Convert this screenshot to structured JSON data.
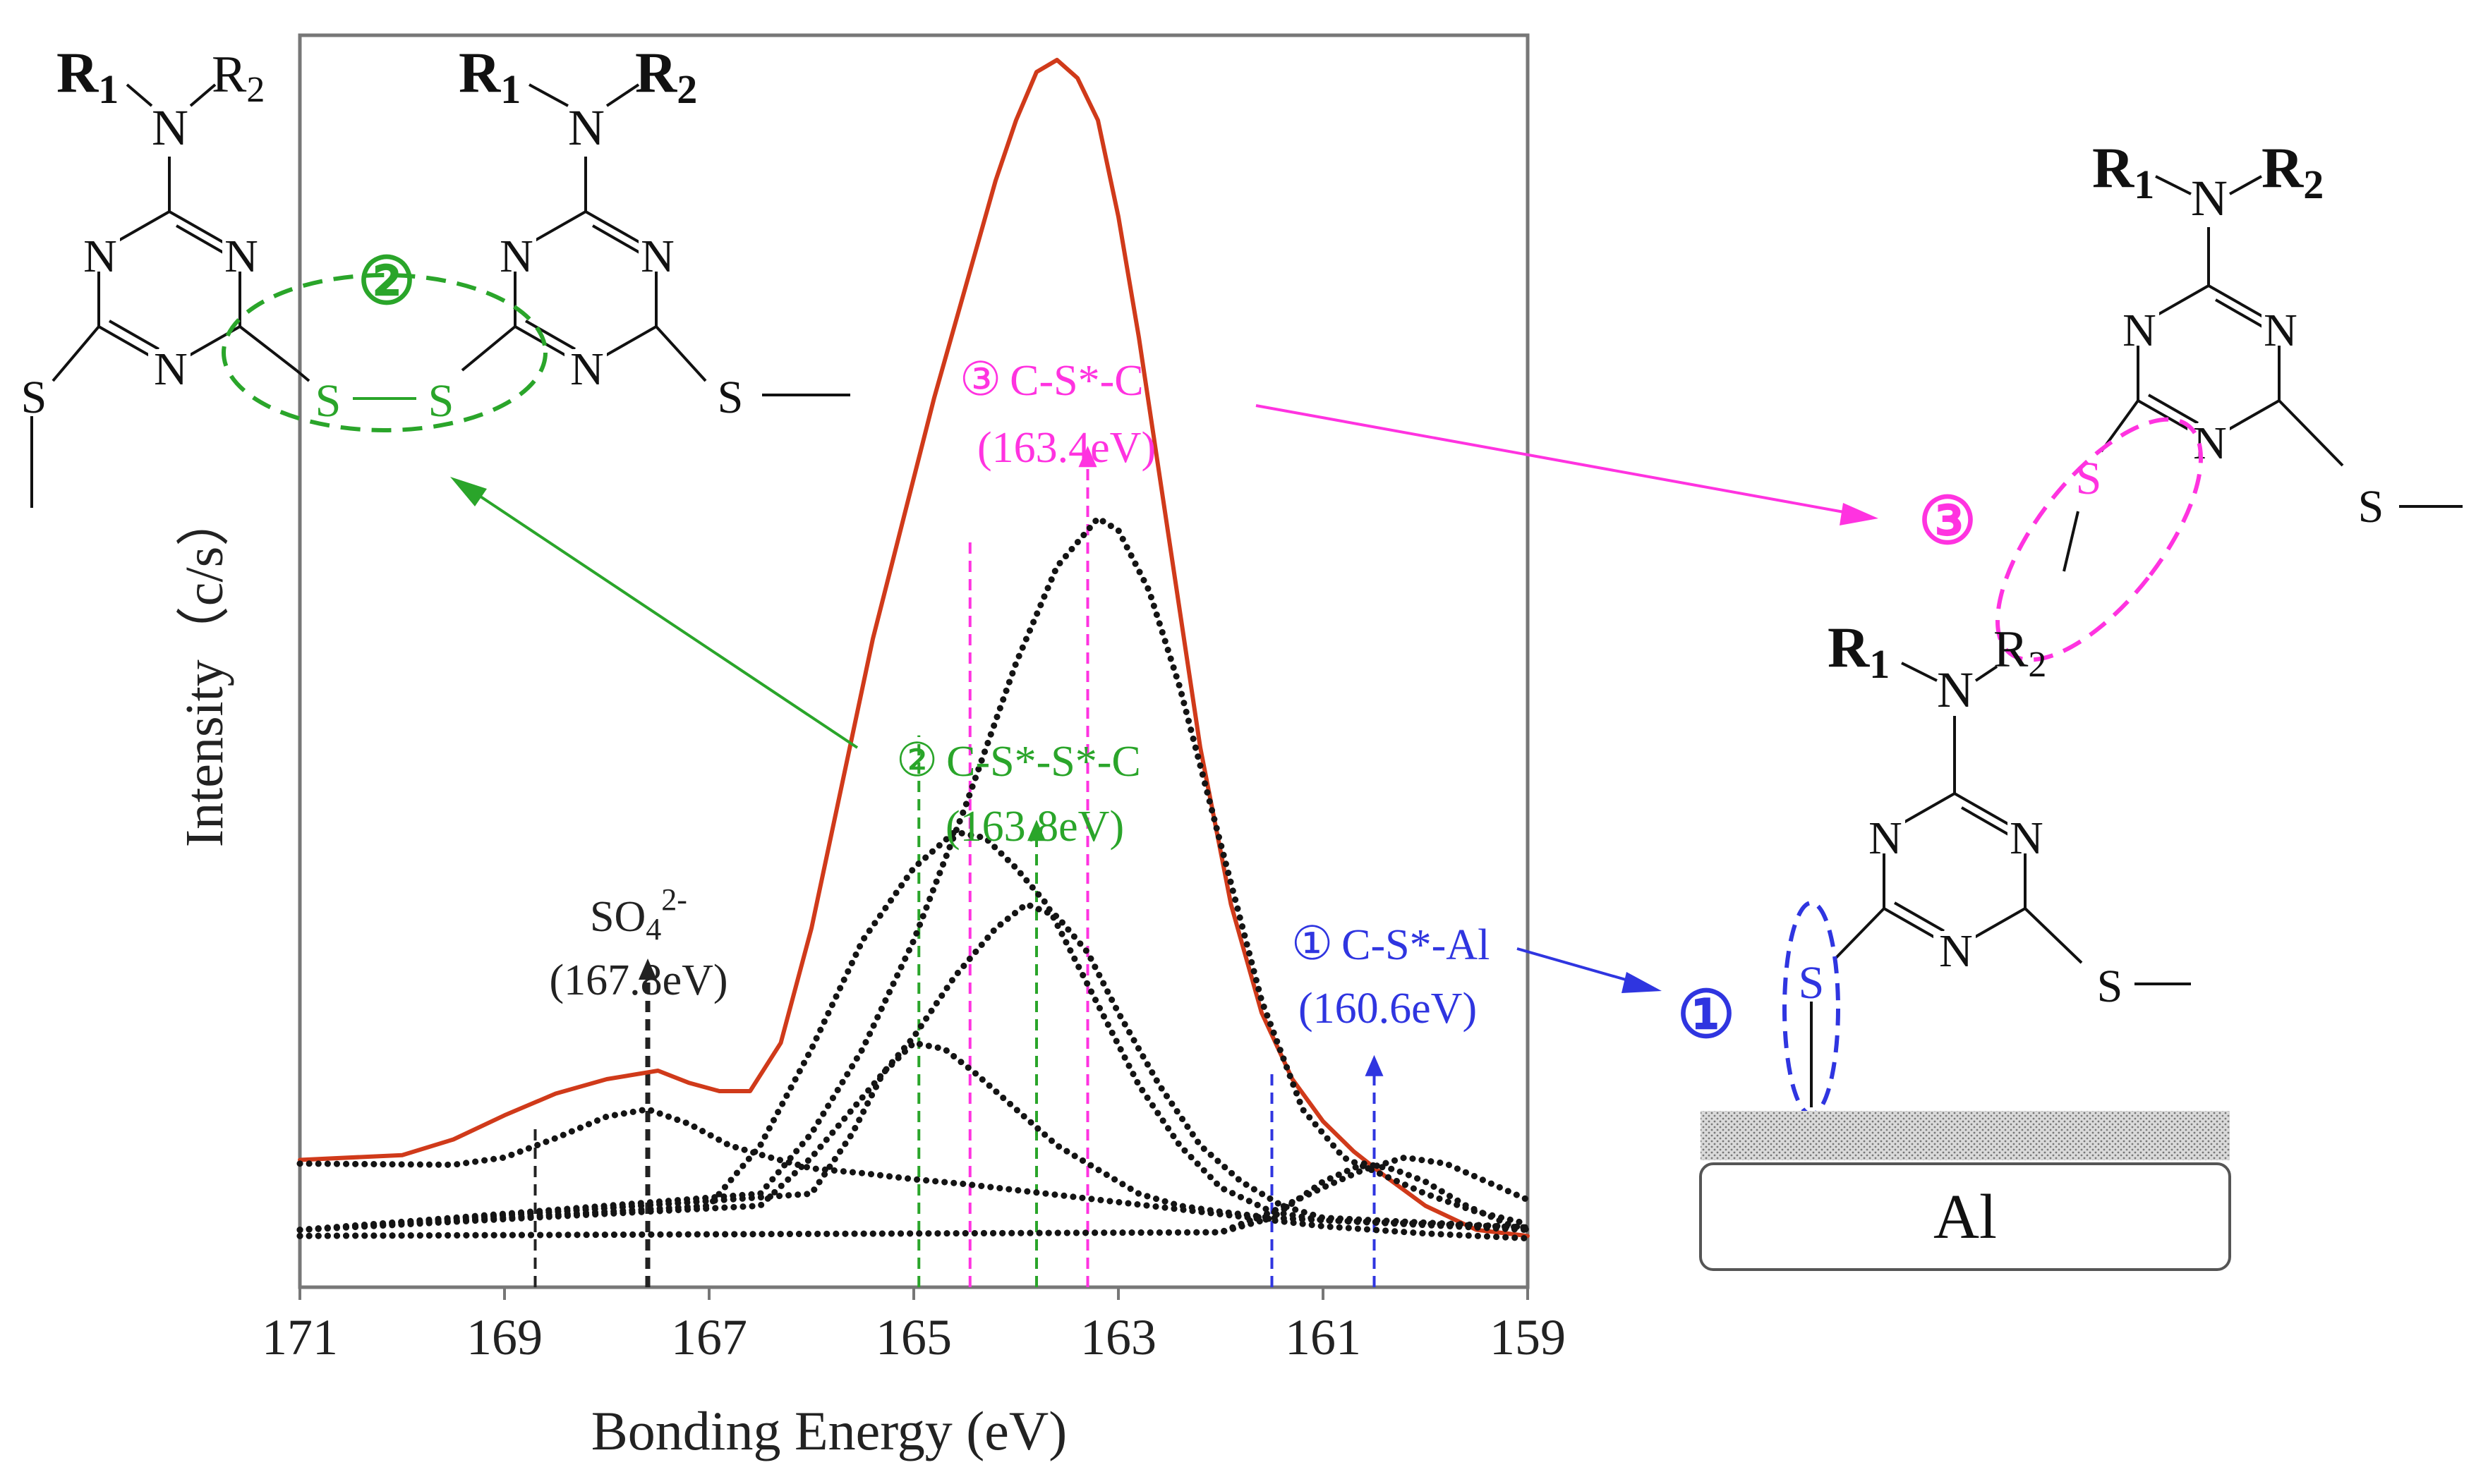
{
  "chart_data": {
    "type": "line",
    "xlabel": "Bonding Energy (eV)",
    "ylabel": "Intensity（c/s）",
    "xlim": [
      171,
      159
    ],
    "x_reversed": true,
    "ylim": [
      0,
      1.0
    ],
    "grid": false,
    "x_ticks": [
      "171",
      "169",
      "167",
      "165",
      "163",
      "161",
      "159"
    ],
    "y_ticks": [],
    "series": [
      {
        "style": "solid",
        "color": "#d03a1a",
        "x": [
          171,
          170,
          169.5,
          169,
          168.5,
          168,
          167.5,
          167.2,
          166.9,
          166.6,
          166.3,
          166,
          165.7,
          165.4,
          165.1,
          164.8,
          164.5,
          164.2,
          164,
          163.8,
          163.6,
          163.4,
          163.2,
          163,
          162.8,
          162.5,
          162.2,
          161.9,
          161.6,
          161.3,
          161,
          160.7,
          160.4,
          160,
          159.5,
          159
        ],
        "y": [
          0.088,
          0.092,
          0.105,
          0.125,
          0.143,
          0.155,
          0.162,
          0.152,
          0.145,
          0.145,
          0.185,
          0.28,
          0.4,
          0.52,
          0.62,
          0.72,
          0.81,
          0.9,
          0.95,
          0.99,
          1.0,
          0.985,
          0.95,
          0.87,
          0.77,
          0.6,
          0.43,
          0.3,
          0.21,
          0.155,
          0.12,
          0.095,
          0.075,
          0.05,
          0.03,
          0.025
        ]
      },
      {
        "style": "dotted",
        "color": "#141414",
        "x": [
          171,
          169.5,
          169,
          168.5,
          168,
          167.6,
          167.2,
          166.8,
          166.4,
          166,
          165.5,
          165,
          164.5,
          164,
          163.5,
          163,
          162.5,
          162,
          161.5,
          161,
          160.5,
          160,
          159.5,
          159
        ],
        "y": [
          0.085,
          0.084,
          0.09,
          0.106,
          0.124,
          0.13,
          0.118,
          0.1,
          0.09,
          0.081,
          0.077,
          0.072,
          0.068,
          0.063,
          0.058,
          0.053,
          0.048,
          0.043,
          0.038,
          0.033,
          0.03,
          0.027,
          0.025,
          0.023
        ]
      },
      {
        "style": "dotted",
        "color": "#141414",
        "x": [
          171,
          166,
          165.6,
          165.3,
          165,
          164.7,
          164.4,
          164,
          163.6,
          163.2,
          162.8,
          162.4,
          162,
          161.5,
          159
        ],
        "y": [
          0.03,
          0.06,
          0.11,
          0.16,
          0.185,
          0.18,
          0.16,
          0.13,
          0.1,
          0.08,
          0.06,
          0.05,
          0.045,
          0.04,
          0.03
        ]
      },
      {
        "style": "dotted",
        "color": "#141414",
        "x": [
          171,
          167,
          166.5,
          166,
          165.5,
          165,
          164.6,
          164.3,
          164,
          163.7,
          163.4,
          163.1,
          162.8,
          162.4,
          162,
          161.5,
          161,
          159
        ],
        "y": [
          0.03,
          0.05,
          0.1,
          0.18,
          0.27,
          0.33,
          0.36,
          0.355,
          0.33,
          0.3,
          0.25,
          0.2,
          0.15,
          0.1,
          0.065,
          0.045,
          0.038,
          0.032
        ]
      },
      {
        "style": "dotted",
        "color": "#141414",
        "x": [
          171,
          166.5,
          166,
          165.5,
          165,
          164.6,
          164.2,
          163.9,
          163.6,
          163.3,
          163,
          162.6,
          162.2,
          161.8,
          161.4,
          161,
          159
        ],
        "y": [
          0.03,
          0.05,
          0.09,
          0.14,
          0.19,
          0.24,
          0.28,
          0.3,
          0.29,
          0.26,
          0.21,
          0.15,
          0.1,
          0.07,
          0.05,
          0.04,
          0.032
        ]
      },
      {
        "style": "dotted",
        "color": "#141414",
        "x": [
          171,
          166.5,
          166,
          165.5,
          165,
          164.5,
          164,
          163.6,
          163.2,
          163,
          162.7,
          162.4,
          162,
          161.6,
          161.2,
          160.8,
          160.4,
          160,
          159.5,
          159
        ],
        "y": [
          0.03,
          0.06,
          0.11,
          0.18,
          0.27,
          0.38,
          0.5,
          0.58,
          0.62,
          0.61,
          0.56,
          0.48,
          0.35,
          0.22,
          0.13,
          0.09,
          0.075,
          0.06,
          0.045,
          0.035
        ]
      },
      {
        "style": "dotted",
        "color": "#141414",
        "x": [
          171,
          162,
          161.5,
          161,
          160.6,
          160.3,
          160,
          159.6,
          159.2,
          159
        ],
        "y": [
          0.025,
          0.028,
          0.04,
          0.07,
          0.085,
          0.08,
          0.07,
          0.05,
          0.035,
          0.03
        ]
      },
      {
        "style": "dotted",
        "color": "#141414",
        "x": [
          171,
          162,
          161.5,
          161,
          160.6,
          160.2,
          159.8,
          159.4,
          159
        ],
        "y": [
          0.025,
          0.028,
          0.045,
          0.065,
          0.08,
          0.09,
          0.085,
          0.07,
          0.055
        ]
      }
    ],
    "vertical_markers": [
      {
        "x": 168.7,
        "color": "#222222",
        "y_top": 0.115,
        "arrow": false
      },
      {
        "x": 167.6,
        "color": "#222222",
        "y_top": 0.255,
        "arrow": true
      },
      {
        "x": 164.95,
        "color": "#2aa52a",
        "y_top": 0.44,
        "arrow": false
      },
      {
        "x": 163.8,
        "color": "#2aa52a",
        "y_top": 0.37,
        "arrow": true
      },
      {
        "x": 164.45,
        "color": "#ff33e0",
        "y_top": 0.6,
        "arrow": false
      },
      {
        "x": 163.3,
        "color": "#ff33e0",
        "y_top": 0.68,
        "arrow": true
      },
      {
        "x": 161.5,
        "color": "#2f35e0",
        "y_top": 0.16,
        "arrow": false
      },
      {
        "x": 160.5,
        "color": "#2f35e0",
        "y_top": 0.175,
        "arrow": true
      }
    ],
    "annotations": [
      {
        "color": "#222222",
        "label_formula": {
          "base": "SO",
          "sub": "4",
          "sup": "2-"
        },
        "energy": "(167.8eV)"
      },
      {
        "color": "#2aa52a",
        "number": "②",
        "label": "C-S*-S*-C",
        "energy": "(163.8eV)"
      },
      {
        "color": "#ff33e0",
        "number": "③",
        "label": "C-S*-C",
        "energy": "(163.4eV)"
      },
      {
        "color": "#2f35e0",
        "number": "①",
        "label": "C-S*-Al",
        "energy": "(160.6eV)"
      }
    ]
  },
  "structures": {
    "r1": "R",
    "r1_sub": "1",
    "r2": "R",
    "r2_sub": "2",
    "n": "N",
    "s": "S",
    "marker_1": "①",
    "marker_2": "②",
    "marker_3": "③",
    "substrate": "Al"
  }
}
